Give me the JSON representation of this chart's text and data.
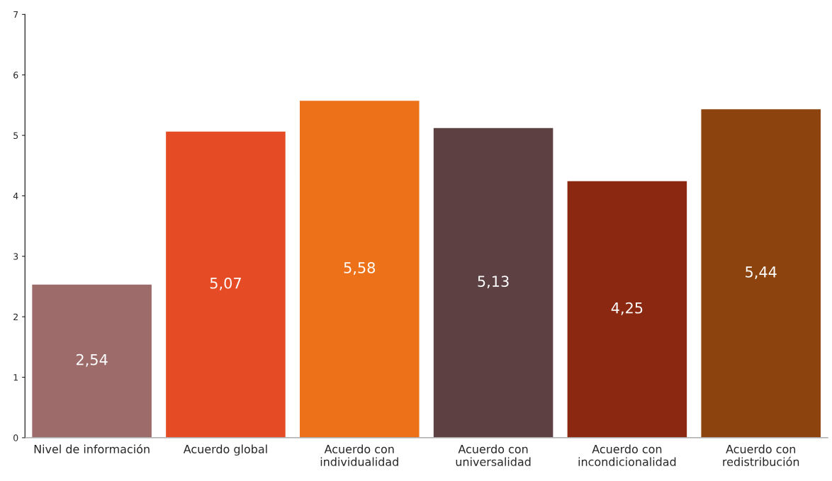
{
  "chart_data": {
    "type": "bar",
    "categories": [
      "Nivel de información",
      "Acuerdo global",
      "Acuerdo con\nindividualidad",
      "Acuerdo con\nuniversalidad",
      "Acuerdo con\nincondicionalidad",
      "Acuerdo con\nredistribución"
    ],
    "values": [
      2.54,
      5.07,
      5.58,
      5.13,
      4.25,
      5.44
    ],
    "value_labels": [
      "2,54",
      "5,07",
      "5,58",
      "5,13",
      "4,25",
      "5,44"
    ],
    "colors": [
      "#9e6b6b",
      "#e54b25",
      "#ec7118",
      "#5c4042",
      "#8b2812",
      "#8c430e"
    ],
    "ylim": [
      0,
      7
    ],
    "yticks": [
      0,
      1,
      2,
      3,
      4,
      5,
      6,
      7
    ],
    "grid": false,
    "legend": false
  }
}
